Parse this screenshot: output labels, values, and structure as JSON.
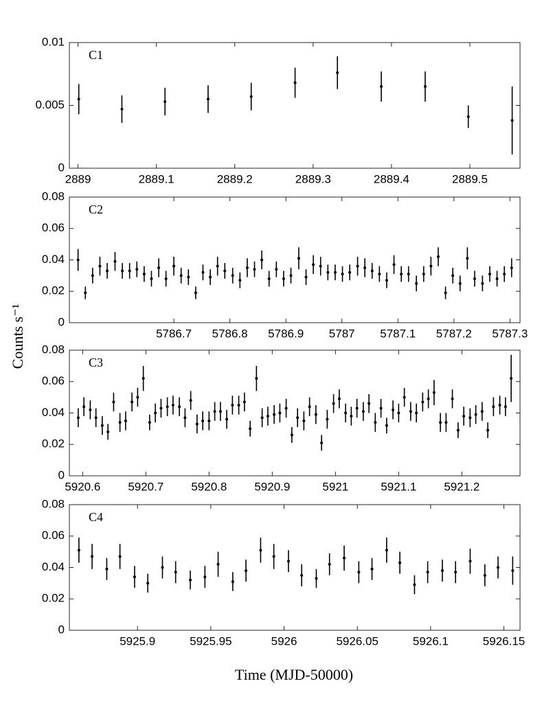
{
  "y_label": "Counts s⁻¹",
  "x_label": "Time (MJD-50000)",
  "chart_data": [
    {
      "type": "scatter",
      "annotation": "C1",
      "color": "#000000",
      "x": [
        2889.001,
        2889.056,
        2889.111,
        2889.166,
        2889.221,
        2889.277,
        2889.331,
        2889.387,
        2889.443,
        2889.498,
        2889.554
      ],
      "values": [
        0.0055,
        0.0047,
        0.0053,
        0.0055,
        0.0057,
        0.0068,
        0.0076,
        0.0065,
        0.0065,
        0.0041,
        0.0038
      ],
      "errors": [
        0.0012,
        0.0011,
        0.0011,
        0.0011,
        0.0011,
        0.0012,
        0.0013,
        0.0012,
        0.0012,
        0.0009,
        0.0027
      ],
      "xlim": [
        2888.989,
        2889.564
      ],
      "xticks": [
        2889,
        2889.1,
        2889.2,
        2889.3,
        2889.4,
        2889.5
      ],
      "ylim": [
        0,
        0.01
      ],
      "yticks": [
        0,
        0.005,
        0.01
      ]
    },
    {
      "type": "scatter",
      "annotation": "C2",
      "color": "#000000",
      "x": [
        5786.529,
        5786.542,
        5786.555,
        5786.568,
        5786.581,
        5786.595,
        5786.608,
        5786.621,
        5786.634,
        5786.647,
        5786.66,
        5786.673,
        5786.686,
        5786.7,
        5786.713,
        5786.726,
        5786.739,
        5786.752,
        5786.765,
        5786.778,
        5786.791,
        5786.805,
        5786.818,
        5786.831,
        5786.844,
        5786.857,
        5786.87,
        5786.883,
        5786.896,
        5786.909,
        5786.923,
        5786.936,
        5786.949,
        5786.962,
        5786.975,
        5786.988,
        5787.001,
        5787.014,
        5787.028,
        5787.041,
        5787.054,
        5787.067,
        5787.08,
        5787.093,
        5787.106,
        5787.119,
        5787.133,
        5787.146,
        5787.159,
        5787.172,
        5787.185,
        5787.198,
        5787.211,
        5787.224,
        5787.237,
        5787.251,
        5787.264,
        5787.277,
        5787.29,
        5787.303
      ],
      "values": [
        0.04,
        0.019,
        0.03,
        0.036,
        0.033,
        0.039,
        0.033,
        0.033,
        0.034,
        0.031,
        0.028,
        0.035,
        0.028,
        0.036,
        0.03,
        0.029,
        0.019,
        0.032,
        0.029,
        0.036,
        0.033,
        0.03,
        0.027,
        0.035,
        0.034,
        0.04,
        0.028,
        0.034,
        0.028,
        0.03,
        0.041,
        0.029,
        0.037,
        0.036,
        0.032,
        0.032,
        0.031,
        0.032,
        0.036,
        0.035,
        0.033,
        0.031,
        0.027,
        0.037,
        0.031,
        0.031,
        0.025,
        0.031,
        0.036,
        0.042,
        0.019,
        0.03,
        0.025,
        0.041,
        0.028,
        0.025,
        0.031,
        0.028,
        0.031,
        0.035
      ],
      "errors": [
        0.007,
        0.004,
        0.005,
        0.006,
        0.005,
        0.006,
        0.005,
        0.005,
        0.005,
        0.005,
        0.005,
        0.006,
        0.005,
        0.006,
        0.005,
        0.005,
        0.004,
        0.005,
        0.005,
        0.006,
        0.005,
        0.005,
        0.005,
        0.006,
        0.005,
        0.006,
        0.005,
        0.005,
        0.005,
        0.005,
        0.007,
        0.005,
        0.006,
        0.006,
        0.005,
        0.005,
        0.005,
        0.005,
        0.006,
        0.006,
        0.005,
        0.005,
        0.005,
        0.006,
        0.005,
        0.005,
        0.005,
        0.005,
        0.006,
        0.006,
        0.004,
        0.005,
        0.005,
        0.007,
        0.005,
        0.005,
        0.005,
        0.005,
        0.005,
        0.006
      ],
      "xlim": [
        5786.5135,
        5787.318
      ],
      "xticks": [
        5786.7,
        5786.8,
        5786.9,
        5787,
        5787.1,
        5787.2,
        5787.3
      ],
      "ylim": [
        0,
        0.08
      ],
      "yticks": [
        0,
        0.02,
        0.04,
        0.06,
        0.08
      ]
    },
    {
      "type": "scatter",
      "annotation": "C3",
      "color": "#000000",
      "x": [
        5920.593,
        5920.602,
        5920.612,
        5920.621,
        5920.631,
        5920.64,
        5920.649,
        5920.659,
        5920.668,
        5920.678,
        5920.687,
        5920.696,
        5920.706,
        5920.715,
        5920.724,
        5920.734,
        5920.743,
        5920.753,
        5920.762,
        5920.771,
        5920.781,
        5920.79,
        5920.8,
        5920.809,
        5920.818,
        5920.828,
        5920.837,
        5920.847,
        5920.856,
        5920.865,
        5920.875,
        5920.884,
        5920.893,
        5920.903,
        5920.912,
        5920.922,
        5920.931,
        5920.94,
        5920.95,
        5920.959,
        5920.969,
        5920.978,
        5920.987,
        5920.997,
        5921.006,
        5921.016,
        5921.025,
        5921.034,
        5921.044,
        5921.053,
        5921.063,
        5921.072,
        5921.081,
        5921.091,
        5921.1,
        5921.109,
        5921.119,
        5921.128,
        5921.138,
        5921.147,
        5921.156,
        5921.166,
        5921.175,
        5921.185,
        5921.194,
        5921.203,
        5921.213,
        5921.222,
        5921.232,
        5921.241,
        5921.25,
        5921.26,
        5921.269,
        5921.278
      ],
      "values": [
        0.037,
        0.044,
        0.042,
        0.037,
        0.032,
        0.028,
        0.047,
        0.034,
        0.035,
        0.047,
        0.05,
        0.062,
        0.034,
        0.04,
        0.043,
        0.044,
        0.045,
        0.044,
        0.037,
        0.048,
        0.033,
        0.035,
        0.035,
        0.041,
        0.041,
        0.036,
        0.045,
        0.045,
        0.047,
        0.03,
        0.062,
        0.037,
        0.038,
        0.039,
        0.04,
        0.043,
        0.026,
        0.037,
        0.035,
        0.044,
        0.039,
        0.021,
        0.036,
        0.046,
        0.049,
        0.04,
        0.038,
        0.043,
        0.041,
        0.046,
        0.034,
        0.043,
        0.032,
        0.042,
        0.04,
        0.05,
        0.041,
        0.04,
        0.047,
        0.049,
        0.053,
        0.034,
        0.034,
        0.049,
        0.029,
        0.038,
        0.037,
        0.039,
        0.041,
        0.029,
        0.044,
        0.045,
        0.044,
        0.062
      ],
      "errors": [
        0.006,
        0.006,
        0.006,
        0.006,
        0.006,
        0.005,
        0.006,
        0.006,
        0.006,
        0.006,
        0.006,
        0.008,
        0.005,
        0.006,
        0.006,
        0.006,
        0.006,
        0.006,
        0.006,
        0.006,
        0.006,
        0.006,
        0.006,
        0.006,
        0.006,
        0.006,
        0.006,
        0.006,
        0.006,
        0.005,
        0.008,
        0.006,
        0.006,
        0.006,
        0.006,
        0.006,
        0.005,
        0.006,
        0.006,
        0.006,
        0.006,
        0.005,
        0.006,
        0.006,
        0.006,
        0.006,
        0.006,
        0.006,
        0.006,
        0.006,
        0.006,
        0.006,
        0.005,
        0.006,
        0.006,
        0.006,
        0.006,
        0.006,
        0.006,
        0.006,
        0.008,
        0.006,
        0.006,
        0.006,
        0.005,
        0.006,
        0.006,
        0.006,
        0.006,
        0.005,
        0.006,
        0.006,
        0.006,
        0.015
      ],
      "xlim": [
        5920.579,
        5921.292
      ],
      "xticks": [
        5920.6,
        5920.7,
        5920.8,
        5920.9,
        5921,
        5921.1,
        5921.2
      ],
      "ylim": [
        0,
        0.08
      ],
      "yticks": [
        0,
        0.02,
        0.04,
        0.06,
        0.08
      ]
    },
    {
      "type": "scatter",
      "annotation": "C4",
      "color": "#000000",
      "x": [
        5925.86,
        5925.869,
        5925.879,
        5925.888,
        5925.898,
        5925.907,
        5925.917,
        5925.926,
        5925.936,
        5925.946,
        5925.955,
        5925.965,
        5925.974,
        5925.984,
        5925.993,
        5926.003,
        5926.012,
        5926.022,
        5926.031,
        5926.041,
        5926.051,
        5926.06,
        5926.07,
        5926.079,
        5926.089,
        5926.098,
        5926.108,
        5926.117,
        5926.127,
        5926.137,
        5926.146,
        5926.156
      ],
      "values": [
        0.051,
        0.047,
        0.039,
        0.047,
        0.034,
        0.03,
        0.04,
        0.037,
        0.032,
        0.034,
        0.042,
        0.031,
        0.038,
        0.051,
        0.047,
        0.044,
        0.035,
        0.033,
        0.042,
        0.046,
        0.037,
        0.039,
        0.051,
        0.043,
        0.029,
        0.037,
        0.038,
        0.037,
        0.044,
        0.035,
        0.04,
        0.038
      ],
      "errors": [
        0.008,
        0.008,
        0.007,
        0.008,
        0.007,
        0.006,
        0.007,
        0.007,
        0.006,
        0.007,
        0.008,
        0.006,
        0.007,
        0.008,
        0.008,
        0.007,
        0.007,
        0.006,
        0.007,
        0.008,
        0.007,
        0.007,
        0.008,
        0.007,
        0.006,
        0.007,
        0.007,
        0.007,
        0.008,
        0.007,
        0.007,
        0.009
      ],
      "xlim": [
        5925.8535,
        5926.161
      ],
      "xticks": [
        5925.9,
        5925.95,
        5926,
        5926.05,
        5926.1,
        5926.15
      ],
      "ylim": [
        0,
        0.08
      ],
      "yticks": [
        0,
        0.02,
        0.04,
        0.06,
        0.08
      ]
    }
  ]
}
